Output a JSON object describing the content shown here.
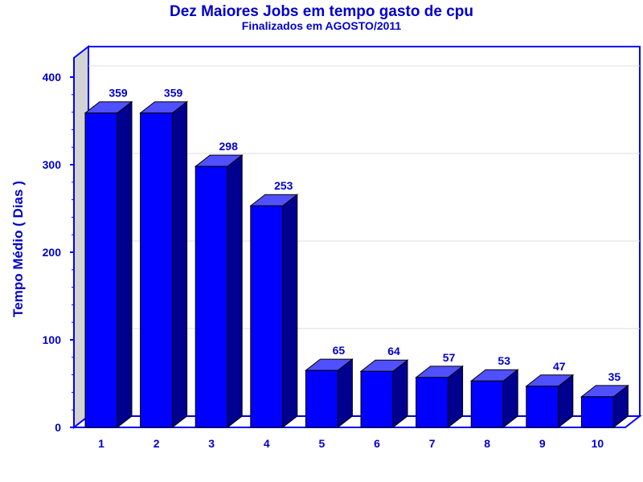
{
  "chart_data": {
    "type": "bar",
    "title": "Dez Maiores Jobs em tempo gasto de cpu",
    "subtitle": "Finalizados em AGOSTO/2011",
    "xlabel": "",
    "ylabel": "Tempo Médio ( Dias )",
    "categories": [
      "1",
      "2",
      "3",
      "4",
      "5",
      "6",
      "7",
      "8",
      "9",
      "10"
    ],
    "values": [
      359,
      359,
      298,
      253,
      65,
      64,
      57,
      53,
      47,
      35
    ],
    "ylim": [
      0,
      400
    ],
    "yticks": [
      "0",
      "100",
      "200",
      "300",
      "400"
    ],
    "grid": true,
    "bar_style": "3d",
    "colors": {
      "bar_front": "#0000ff",
      "bar_top": "#5050ff",
      "bar_side": "#000090",
      "text": "#0000cc",
      "frame": "#0000ff",
      "left_wall": "#d3d3d3",
      "grid": "#dcdcdc"
    }
  }
}
